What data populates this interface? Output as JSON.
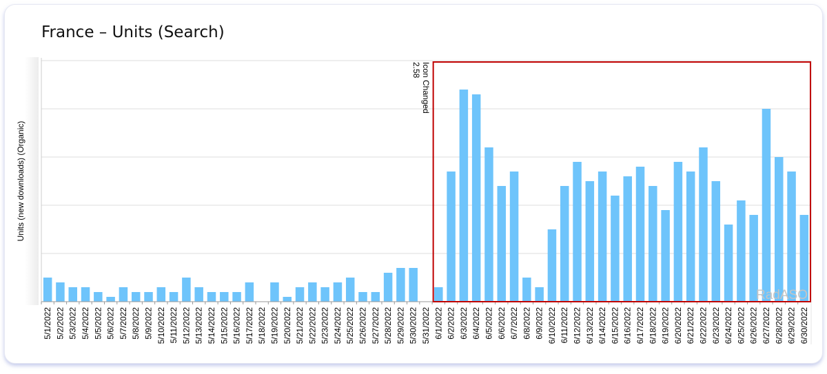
{
  "header": {
    "title": "France – Units (Search)"
  },
  "chart_data": {
    "type": "bar",
    "title": "France – Units (Search)",
    "xlabel": "",
    "ylabel": "Units (new downloads) (Organic)",
    "ylim": [
      0,
      50
    ],
    "grid": true,
    "bar_color": "#6ec4fb",
    "categories": [
      "5/1/2022",
      "5/2/2022",
      "5/3/2022",
      "5/4/2022",
      "5/5/2022",
      "5/6/2022",
      "5/7/2022",
      "5/8/2022",
      "5/9/2022",
      "5/10/2022",
      "5/11/2022",
      "5/12/2022",
      "5/13/2022",
      "5/14/2022",
      "5/15/2022",
      "5/16/2022",
      "5/17/2022",
      "5/18/2022",
      "5/19/2022",
      "5/20/2022",
      "5/21/2022",
      "5/22/2022",
      "5/23/2022",
      "5/24/2022",
      "5/25/2022",
      "5/26/2022",
      "5/27/2022",
      "5/28/2022",
      "5/29/2022",
      "5/30/2022",
      "5/31/2022",
      "6/1/2022",
      "6/2/2022",
      "6/3/2022",
      "6/4/2022",
      "6/5/2022",
      "6/6/2022",
      "6/7/2022",
      "6/8/2022",
      "6/9/2022",
      "6/10/2022",
      "6/11/2022",
      "6/12/2022",
      "6/13/2022",
      "6/14/2022",
      "6/15/2022",
      "6/16/2022",
      "6/17/2022",
      "6/18/2022",
      "6/19/2022",
      "6/20/2022",
      "6/21/2022",
      "6/22/2022",
      "6/23/2022",
      "6/24/2022",
      "6/25/2022",
      "6/26/2022",
      "6/27/2022",
      "6/28/2022",
      "6/29/2022",
      "6/30/2022"
    ],
    "values": [
      5,
      4,
      3,
      3,
      2,
      1,
      3,
      2,
      2,
      3,
      2,
      5,
      3,
      2,
      2,
      2,
      4,
      0,
      4,
      1,
      3,
      4,
      3,
      4,
      5,
      2,
      2,
      6,
      7,
      7,
      0,
      3,
      27,
      44,
      43,
      32,
      24,
      27,
      5,
      3,
      15,
      24,
      29,
      25,
      27,
      22,
      26,
      28,
      24,
      19,
      29,
      27,
      32,
      25,
      16,
      21,
      18,
      40,
      30,
      27,
      18
    ],
    "annotations": [
      {
        "text": "Icon Changed",
        "value": "2.58",
        "category": "6/1/2022"
      }
    ],
    "highlight": {
      "from": "6/1/2022",
      "to": "6/30/2022",
      "color": "#c00000"
    },
    "watermark": "RadASO"
  }
}
